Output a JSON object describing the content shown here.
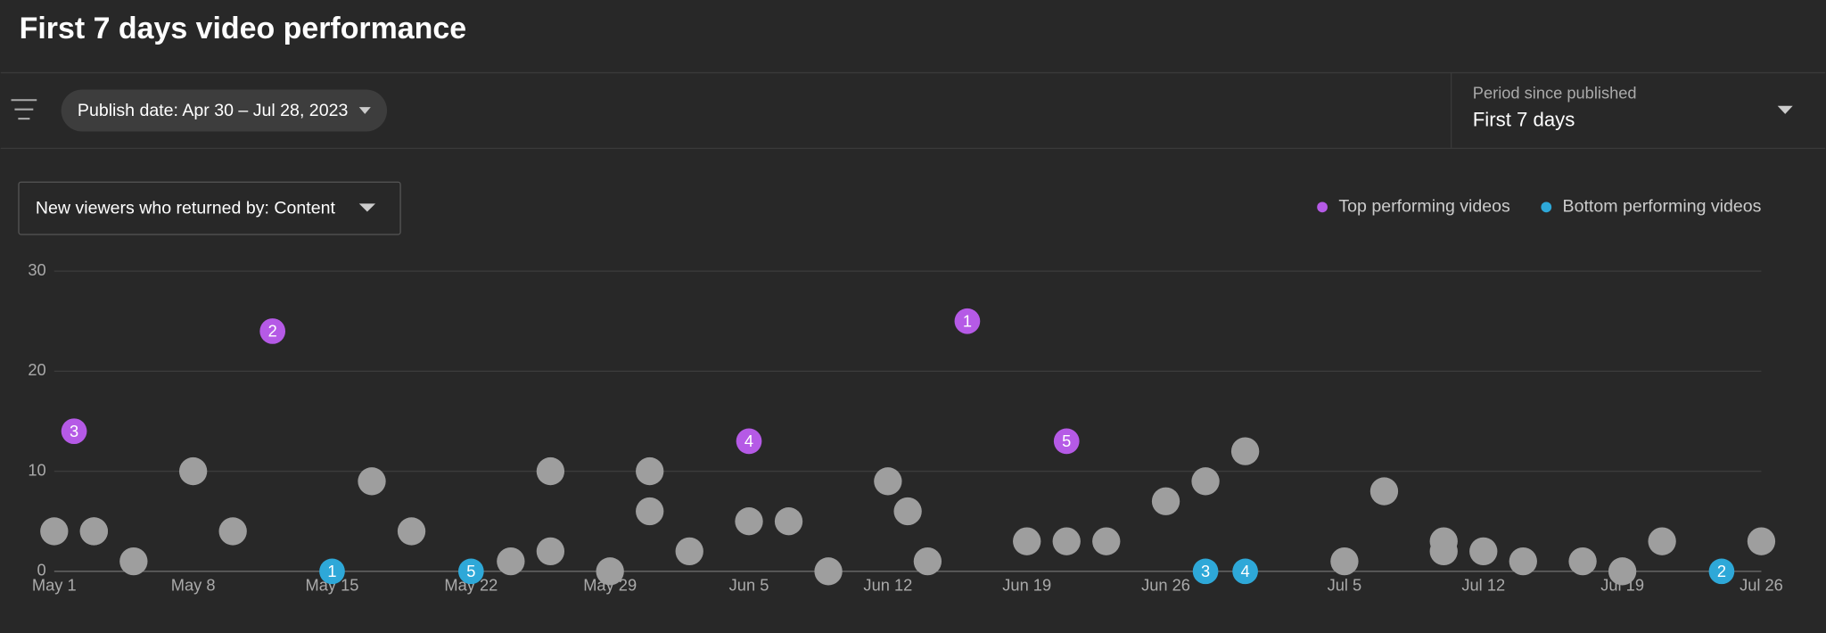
{
  "header": {
    "title": "First 7 days video performance"
  },
  "filters": {
    "publish_date": "Publish date: Apr 30 – Jul 28, 2023",
    "period_label": "Period since published",
    "period_value": "First 7 days"
  },
  "metric_selector": "New viewers who returned by: Content",
  "chart_data": {
    "type": "scatter",
    "legend": "top-right",
    "grid": true,
    "xlim": [
      "May 1",
      "Jul 26"
    ],
    "xticks": [
      "May 1",
      "May 8",
      "May 15",
      "May 22",
      "May 29",
      "Jun 5",
      "Jun 12",
      "Jun 19",
      "Jun 26",
      "Jul 5",
      "Jul 12",
      "Jul 19",
      "Jul 26"
    ],
    "ylim": [
      0,
      30
    ],
    "yticks": [
      0,
      10,
      20,
      30
    ],
    "series": [
      {
        "color": "#9e9e9e",
        "x": [
          "May 1",
          "May 3",
          "May 3",
          "May 5",
          "May 8",
          "May 10",
          "May 17",
          "May 19",
          "May 24",
          "May 26",
          "May 26",
          "May 29",
          "May 31",
          "May 31",
          "Jun 2",
          "Jun 5",
          "Jun 7",
          "Jun 9",
          "Jun 12",
          "Jun 13",
          "Jun 14",
          "Jun 19",
          "Jun 21",
          "Jun 23",
          "Jun 26",
          "Jun 28",
          "Jun 30",
          "Jul 5",
          "Jul 7",
          "Jul 10",
          "Jul 10",
          "Jul 12",
          "Jul 14",
          "Jul 17",
          "Jul 19",
          "Jul 21",
          "Jul 26"
        ],
        "values": [
          4,
          4,
          4,
          1,
          10,
          4,
          9,
          4,
          1,
          2,
          10,
          0,
          6,
          10,
          2,
          5,
          5,
          0,
          9,
          6,
          1,
          3,
          3,
          3,
          7,
          9,
          12,
          1,
          8,
          3,
          2,
          2,
          1,
          1,
          0,
          3,
          3
        ]
      },
      {
        "name": "Top performing videos",
        "color": "#b55ae6",
        "x": [
          "Jun 16",
          "May 12",
          "May 2",
          "Jun 5",
          "Jun 21"
        ],
        "values": [
          25,
          24,
          14,
          13,
          13
        ],
        "ranks": [
          1,
          2,
          3,
          4,
          5
        ]
      },
      {
        "name": "Bottom performing videos",
        "color": "#2ea8d8",
        "x": [
          "May 15",
          "Jul 24",
          "Jun 28",
          "Jun 30",
          "May 22"
        ],
        "values": [
          0,
          0,
          0,
          0,
          0
        ],
        "ranks": [
          1,
          2,
          3,
          4,
          5
        ]
      }
    ]
  }
}
